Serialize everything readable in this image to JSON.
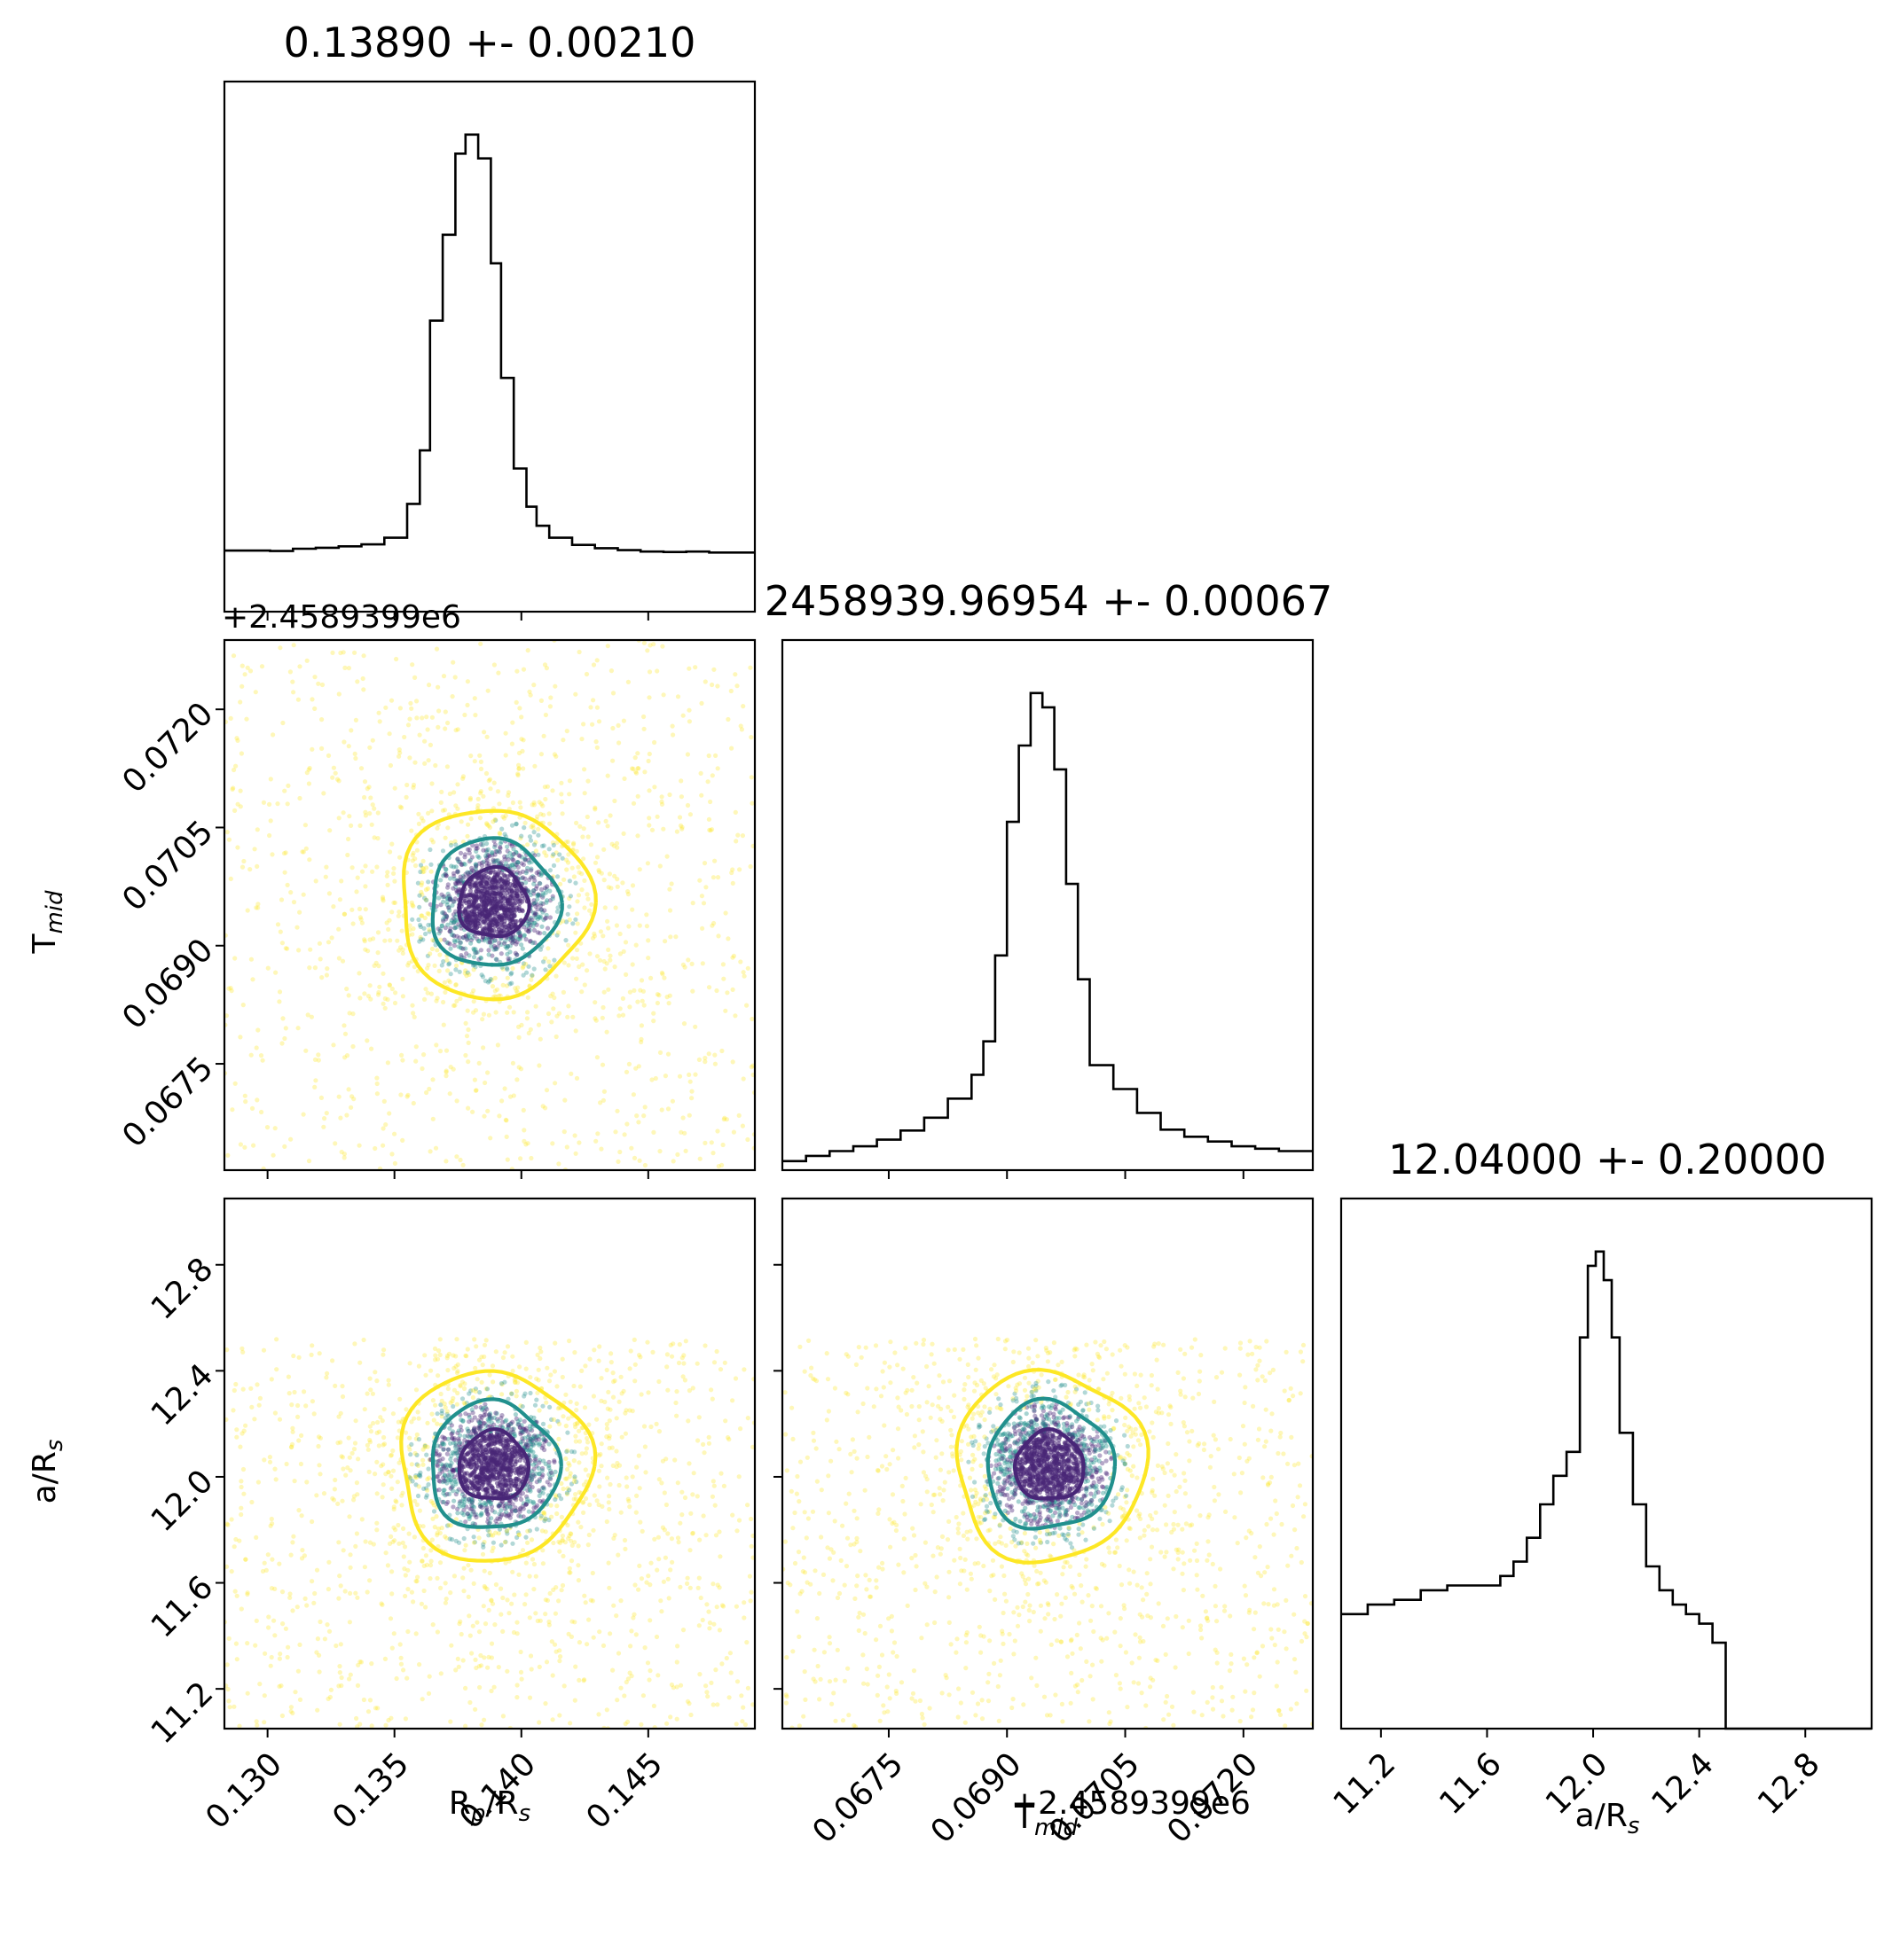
{
  "chart_data": {
    "type": "scatter",
    "kind": "corner-plot",
    "parameters": [
      {
        "name": "Rp/Rs",
        "label": "R",
        "sub": "p",
        "label_tail": "/R",
        "sub2": "s",
        "title": "0.13890 +- 0.00210",
        "mean": 0.1389,
        "sigma": 0.0021,
        "range": [
          0.1283,
          0.1492
        ],
        "ticks": [
          "0.130",
          "0.135",
          "0.140",
          "0.145"
        ]
      },
      {
        "name": "Tmid",
        "label": "T",
        "sub": "mid",
        "label_tail": "",
        "sub2": "",
        "title": "2458939.96954 +- 0.00067",
        "mean": 0.06954,
        "sigma": 0.00067,
        "range": [
          0.06615,
          0.07288
        ],
        "offset": "+2.4589399e6",
        "ticks": [
          "0.0675",
          "0.0690",
          "0.0705",
          "0.0720"
        ]
      },
      {
        "name": "a/Rs",
        "label": "a/R",
        "sub": "s",
        "label_tail": "",
        "sub2": "",
        "title": "12.04000 +- 0.20000",
        "mean": 12.04,
        "sigma": 0.2,
        "range": [
          11.05,
          13.05
        ],
        "ticks": [
          "11.2",
          "11.6",
          "12.0",
          "12.4",
          "12.8"
        ]
      }
    ],
    "histograms": [
      {
        "param": "Rp/Rs",
        "bins": [
          [
            0.1283,
            0.128,
            0.1292
          ],
          [
            0.1292,
            0.128,
            0.1301
          ],
          [
            0.1301,
            0.127,
            0.131
          ],
          [
            0.131,
            0.132,
            0.1319
          ],
          [
            0.1319,
            0.134,
            0.1328
          ],
          [
            0.1328,
            0.137,
            0.1337
          ],
          [
            0.1337,
            0.141,
            0.1346
          ],
          [
            0.1346,
            0.155,
            0.1355
          ],
          [
            0.1355,
            0.226,
            0.136
          ],
          [
            0.136,
            0.338,
            0.1364
          ],
          [
            0.1364,
            0.61,
            0.1369
          ],
          [
            0.1369,
            0.79,
            0.1374
          ],
          [
            0.1374,
            0.96,
            0.1378
          ],
          [
            0.1378,
            1.0,
            0.1383
          ],
          [
            0.1383,
            0.95,
            0.1388
          ],
          [
            0.1388,
            0.73,
            0.1392
          ],
          [
            0.1392,
            0.49,
            0.1397
          ],
          [
            0.1397,
            0.3,
            0.1402
          ],
          [
            0.1402,
            0.22,
            0.1406
          ],
          [
            0.1406,
            0.18,
            0.1411
          ],
          [
            0.1411,
            0.155,
            0.142
          ],
          [
            0.142,
            0.14,
            0.1429
          ],
          [
            0.1429,
            0.133,
            0.1438
          ],
          [
            0.1438,
            0.129,
            0.1447
          ],
          [
            0.1447,
            0.126,
            0.1456
          ],
          [
            0.1456,
            0.125,
            0.1465
          ],
          [
            0.1465,
            0.126,
            0.1474
          ],
          [
            0.1474,
            0.124,
            0.1483
          ],
          [
            0.1483,
            0.124,
            0.1492
          ]
        ]
      },
      {
        "param": "Tmid",
        "bins": [
          [
            0.06615,
            0.019,
            0.06645
          ],
          [
            0.06645,
            0.03,
            0.06675
          ],
          [
            0.06675,
            0.04,
            0.06705
          ],
          [
            0.06705,
            0.05,
            0.06735
          ],
          [
            0.06735,
            0.064,
            0.06765
          ],
          [
            0.06765,
            0.083,
            0.06795
          ],
          [
            0.06795,
            0.11,
            0.06825
          ],
          [
            0.06825,
            0.15,
            0.06855
          ],
          [
            0.06855,
            0.2,
            0.0687
          ],
          [
            0.0687,
            0.27,
            0.06885
          ],
          [
            0.06885,
            0.45,
            0.069
          ],
          [
            0.069,
            0.73,
            0.06915
          ],
          [
            0.06915,
            0.89,
            0.0693
          ],
          [
            0.0693,
            1.0,
            0.06945
          ],
          [
            0.06945,
            0.97,
            0.0696
          ],
          [
            0.0696,
            0.84,
            0.06975
          ],
          [
            0.06975,
            0.6,
            0.0699
          ],
          [
            0.0699,
            0.4,
            0.07005
          ],
          [
            0.07005,
            0.22,
            0.07035
          ],
          [
            0.07035,
            0.17,
            0.07065
          ],
          [
            0.07065,
            0.12,
            0.07095
          ],
          [
            0.07095,
            0.085,
            0.07125
          ],
          [
            0.07125,
            0.07,
            0.07155
          ],
          [
            0.07155,
            0.06,
            0.07185
          ],
          [
            0.07185,
            0.05,
            0.07215
          ],
          [
            0.07215,
            0.045,
            0.07245
          ],
          [
            0.07245,
            0.04,
            0.07288
          ]
        ]
      },
      {
        "param": "a/Rs",
        "bins": [
          [
            11.05,
            0.24,
            11.15
          ],
          [
            11.15,
            0.26,
            11.25
          ],
          [
            11.25,
            0.27,
            11.35
          ],
          [
            11.35,
            0.29,
            11.45
          ],
          [
            11.45,
            0.3,
            11.55
          ],
          [
            11.55,
            0.3,
            11.65
          ],
          [
            11.65,
            0.32,
            11.7
          ],
          [
            11.7,
            0.35,
            11.75
          ],
          [
            11.75,
            0.4,
            11.8
          ],
          [
            11.8,
            0.47,
            11.85
          ],
          [
            11.85,
            0.53,
            11.9
          ],
          [
            11.9,
            0.58,
            11.95
          ],
          [
            11.95,
            0.82,
            11.98
          ],
          [
            11.98,
            0.97,
            12.01
          ],
          [
            12.01,
            1.0,
            12.04
          ],
          [
            12.04,
            0.94,
            12.07
          ],
          [
            12.07,
            0.82,
            12.1
          ],
          [
            12.1,
            0.62,
            12.15
          ],
          [
            12.15,
            0.47,
            12.2
          ],
          [
            12.2,
            0.34,
            12.25
          ],
          [
            12.25,
            0.29,
            12.3
          ],
          [
            12.3,
            0.26,
            12.35
          ],
          [
            12.35,
            0.24,
            12.4
          ],
          [
            12.4,
            0.22,
            12.45
          ],
          [
            12.45,
            0.18,
            12.5
          ],
          [
            12.5,
            0.0,
            13.05
          ]
        ]
      }
    ],
    "scatter_panels": [
      {
        "x": "Rp/Rs",
        "y": "Tmid",
        "points": 2600,
        "yclip": null
      },
      {
        "x": "Rp/Rs",
        "y": "a/Rs",
        "points": 2600,
        "yclip": 12.52
      },
      {
        "x": "Tmid",
        "y": "a/Rs",
        "points": 2600,
        "yclip": 12.52
      }
    ],
    "contour_levels": [
      "1-sigma",
      "2-sigma",
      "3-sigma"
    ],
    "colors": {
      "sigma1": "#482677",
      "sigma2": "#21908d",
      "sigma3": "#fde725",
      "hist": "#000000"
    },
    "grid": false,
    "legend": "none"
  }
}
